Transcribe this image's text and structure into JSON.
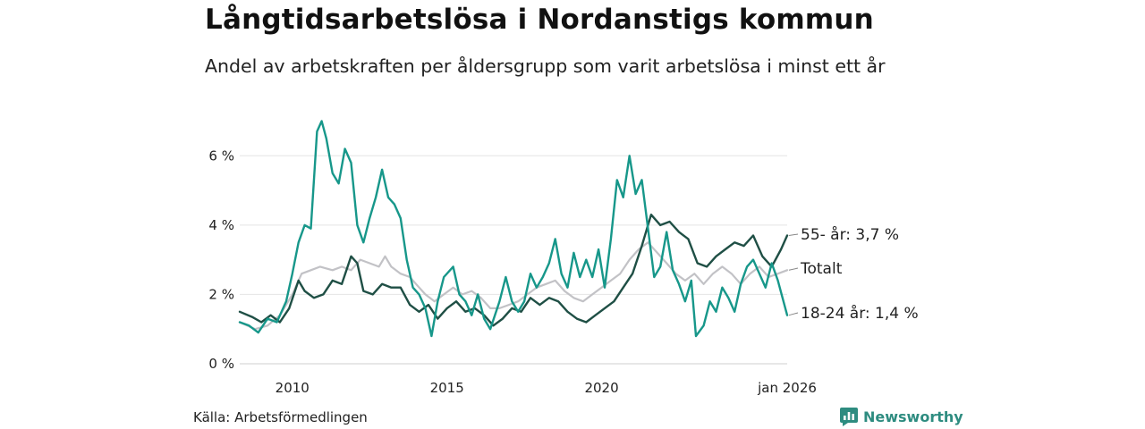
{
  "header": {
    "title": "Långtidsarbetslösa i Nordanstigs kommun",
    "subtitle": "Andel av arbetskraften per åldersgrupp som varit arbetslösa i minst ett år"
  },
  "footer": {
    "source": "Källa: Arbetsförmedlingen",
    "brand": "Newsworthy",
    "brand_icon": "bar-chart-logo-icon",
    "brand_color": "#2e8c80"
  },
  "chart_data": {
    "type": "line",
    "title": "Långtidsarbetslösa i Nordanstigs kommun",
    "xlabel": "",
    "ylabel": "",
    "xlim": [
      2008.3,
      2026.0
    ],
    "ylim": [
      0,
      7.4
    ],
    "y_ticks": [
      0,
      2,
      4,
      6
    ],
    "y_tick_labels": [
      "0 %",
      "2 %",
      "4 %",
      "6 %"
    ],
    "x_ticks": [
      2010,
      2015,
      2020,
      2026.0
    ],
    "x_tick_labels": [
      "2010",
      "2015",
      "2020",
      "jan 2026"
    ],
    "grid": true,
    "series": [
      {
        "name": "Totalt",
        "label": "Totalt",
        "color": "#c2c2c6",
        "points": [
          [
            2008.3,
            1.2
          ],
          [
            2008.8,
            1.0
          ],
          [
            2009.2,
            1.1
          ],
          [
            2009.6,
            1.4
          ],
          [
            2010.0,
            2.0
          ],
          [
            2010.3,
            2.6
          ],
          [
            2010.6,
            2.7
          ],
          [
            2010.9,
            2.8
          ],
          [
            2011.3,
            2.7
          ],
          [
            2011.6,
            2.8
          ],
          [
            2011.9,
            2.7
          ],
          [
            2012.2,
            3.0
          ],
          [
            2012.5,
            2.9
          ],
          [
            2012.8,
            2.8
          ],
          [
            2013.0,
            3.1
          ],
          [
            2013.2,
            2.8
          ],
          [
            2013.5,
            2.6
          ],
          [
            2013.8,
            2.5
          ],
          [
            2014.0,
            2.3
          ],
          [
            2014.3,
            2.0
          ],
          [
            2014.6,
            1.8
          ],
          [
            2014.9,
            2.0
          ],
          [
            2015.2,
            2.2
          ],
          [
            2015.5,
            2.0
          ],
          [
            2015.8,
            2.1
          ],
          [
            2016.1,
            1.9
          ],
          [
            2016.4,
            1.6
          ],
          [
            2016.7,
            1.6
          ],
          [
            2017.0,
            1.7
          ],
          [
            2017.3,
            1.8
          ],
          [
            2017.6,
            2.0
          ],
          [
            2017.9,
            2.2
          ],
          [
            2018.2,
            2.3
          ],
          [
            2018.5,
            2.4
          ],
          [
            2018.8,
            2.1
          ],
          [
            2019.1,
            1.9
          ],
          [
            2019.4,
            1.8
          ],
          [
            2019.7,
            2.0
          ],
          [
            2020.0,
            2.2
          ],
          [
            2020.3,
            2.4
          ],
          [
            2020.6,
            2.6
          ],
          [
            2020.9,
            3.0
          ],
          [
            2021.2,
            3.3
          ],
          [
            2021.5,
            3.5
          ],
          [
            2021.8,
            3.2
          ],
          [
            2022.1,
            2.9
          ],
          [
            2022.4,
            2.6
          ],
          [
            2022.7,
            2.4
          ],
          [
            2023.0,
            2.6
          ],
          [
            2023.3,
            2.3
          ],
          [
            2023.6,
            2.6
          ],
          [
            2023.9,
            2.8
          ],
          [
            2024.2,
            2.6
          ],
          [
            2024.5,
            2.3
          ],
          [
            2024.8,
            2.6
          ],
          [
            2025.1,
            2.8
          ],
          [
            2025.4,
            2.5
          ],
          [
            2025.7,
            2.6
          ],
          [
            2026.0,
            2.7
          ]
        ]
      },
      {
        "name": "55- år",
        "label": "55- år: 3,7 %",
        "color": "#1f4f45",
        "points": [
          [
            2008.3,
            1.5
          ],
          [
            2008.7,
            1.35
          ],
          [
            2009.0,
            1.2
          ],
          [
            2009.3,
            1.4
          ],
          [
            2009.6,
            1.2
          ],
          [
            2009.9,
            1.6
          ],
          [
            2010.2,
            2.4
          ],
          [
            2010.4,
            2.1
          ],
          [
            2010.7,
            1.9
          ],
          [
            2011.0,
            2.0
          ],
          [
            2011.3,
            2.4
          ],
          [
            2011.6,
            2.3
          ],
          [
            2011.9,
            3.1
          ],
          [
            2012.1,
            2.9
          ],
          [
            2012.3,
            2.1
          ],
          [
            2012.6,
            2.0
          ],
          [
            2012.9,
            2.3
          ],
          [
            2013.2,
            2.2
          ],
          [
            2013.5,
            2.2
          ],
          [
            2013.8,
            1.7
          ],
          [
            2014.1,
            1.5
          ],
          [
            2014.4,
            1.7
          ],
          [
            2014.7,
            1.3
          ],
          [
            2015.0,
            1.6
          ],
          [
            2015.3,
            1.8
          ],
          [
            2015.6,
            1.5
          ],
          [
            2015.9,
            1.6
          ],
          [
            2016.2,
            1.4
          ],
          [
            2016.5,
            1.1
          ],
          [
            2016.8,
            1.3
          ],
          [
            2017.1,
            1.6
          ],
          [
            2017.4,
            1.5
          ],
          [
            2017.7,
            1.9
          ],
          [
            2018.0,
            1.7
          ],
          [
            2018.3,
            1.9
          ],
          [
            2018.6,
            1.8
          ],
          [
            2018.9,
            1.5
          ],
          [
            2019.2,
            1.3
          ],
          [
            2019.5,
            1.2
          ],
          [
            2019.8,
            1.4
          ],
          [
            2020.1,
            1.6
          ],
          [
            2020.4,
            1.8
          ],
          [
            2020.7,
            2.2
          ],
          [
            2021.0,
            2.6
          ],
          [
            2021.3,
            3.4
          ],
          [
            2021.6,
            4.3
          ],
          [
            2021.9,
            4.0
          ],
          [
            2022.2,
            4.1
          ],
          [
            2022.5,
            3.8
          ],
          [
            2022.8,
            3.6
          ],
          [
            2023.1,
            2.9
          ],
          [
            2023.4,
            2.8
          ],
          [
            2023.7,
            3.1
          ],
          [
            2024.0,
            3.3
          ],
          [
            2024.3,
            3.5
          ],
          [
            2024.6,
            3.4
          ],
          [
            2024.9,
            3.7
          ],
          [
            2025.2,
            3.1
          ],
          [
            2025.5,
            2.8
          ],
          [
            2025.8,
            3.3
          ],
          [
            2026.0,
            3.7
          ]
        ]
      },
      {
        "name": "18-24 år",
        "label": "18-24 år: 1,4 %",
        "color": "#17978a",
        "points": [
          [
            2008.3,
            1.2
          ],
          [
            2008.6,
            1.1
          ],
          [
            2008.9,
            0.9
          ],
          [
            2009.2,
            1.3
          ],
          [
            2009.5,
            1.2
          ],
          [
            2009.8,
            1.8
          ],
          [
            2010.0,
            2.6
          ],
          [
            2010.2,
            3.5
          ],
          [
            2010.4,
            4.0
          ],
          [
            2010.6,
            3.9
          ],
          [
            2010.8,
            6.7
          ],
          [
            2010.95,
            7.0
          ],
          [
            2011.1,
            6.5
          ],
          [
            2011.3,
            5.5
          ],
          [
            2011.5,
            5.2
          ],
          [
            2011.7,
            6.2
          ],
          [
            2011.9,
            5.8
          ],
          [
            2012.1,
            4.0
          ],
          [
            2012.3,
            3.5
          ],
          [
            2012.5,
            4.2
          ],
          [
            2012.7,
            4.8
          ],
          [
            2012.9,
            5.6
          ],
          [
            2013.1,
            4.8
          ],
          [
            2013.3,
            4.6
          ],
          [
            2013.5,
            4.2
          ],
          [
            2013.7,
            3.0
          ],
          [
            2013.9,
            2.2
          ],
          [
            2014.1,
            2.0
          ],
          [
            2014.3,
            1.6
          ],
          [
            2014.5,
            0.8
          ],
          [
            2014.7,
            1.8
          ],
          [
            2014.9,
            2.5
          ],
          [
            2015.2,
            2.8
          ],
          [
            2015.4,
            2.0
          ],
          [
            2015.6,
            1.8
          ],
          [
            2015.8,
            1.4
          ],
          [
            2016.0,
            2.0
          ],
          [
            2016.2,
            1.3
          ],
          [
            2016.4,
            1.0
          ],
          [
            2016.7,
            1.8
          ],
          [
            2016.9,
            2.5
          ],
          [
            2017.1,
            1.8
          ],
          [
            2017.3,
            1.5
          ],
          [
            2017.5,
            1.8
          ],
          [
            2017.7,
            2.6
          ],
          [
            2017.9,
            2.2
          ],
          [
            2018.1,
            2.5
          ],
          [
            2018.3,
            2.9
          ],
          [
            2018.5,
            3.6
          ],
          [
            2018.7,
            2.6
          ],
          [
            2018.9,
            2.2
          ],
          [
            2019.1,
            3.2
          ],
          [
            2019.3,
            2.5
          ],
          [
            2019.5,
            3.0
          ],
          [
            2019.7,
            2.5
          ],
          [
            2019.9,
            3.3
          ],
          [
            2020.1,
            2.2
          ],
          [
            2020.3,
            3.6
          ],
          [
            2020.5,
            5.3
          ],
          [
            2020.7,
            4.8
          ],
          [
            2020.9,
            6.0
          ],
          [
            2021.1,
            4.9
          ],
          [
            2021.3,
            5.3
          ],
          [
            2021.5,
            3.9
          ],
          [
            2021.7,
            2.5
          ],
          [
            2021.9,
            2.8
          ],
          [
            2022.1,
            3.8
          ],
          [
            2022.3,
            2.7
          ],
          [
            2022.5,
            2.3
          ],
          [
            2022.7,
            1.8
          ],
          [
            2022.9,
            2.4
          ],
          [
            2023.05,
            0.8
          ],
          [
            2023.3,
            1.1
          ],
          [
            2023.5,
            1.8
          ],
          [
            2023.7,
            1.5
          ],
          [
            2023.9,
            2.2
          ],
          [
            2024.1,
            1.9
          ],
          [
            2024.3,
            1.5
          ],
          [
            2024.5,
            2.3
          ],
          [
            2024.7,
            2.8
          ],
          [
            2024.9,
            3.0
          ],
          [
            2025.1,
            2.6
          ],
          [
            2025.3,
            2.2
          ],
          [
            2025.5,
            2.9
          ],
          [
            2025.7,
            2.4
          ],
          [
            2025.85,
            1.9
          ],
          [
            2026.0,
            1.4
          ]
        ]
      }
    ]
  }
}
